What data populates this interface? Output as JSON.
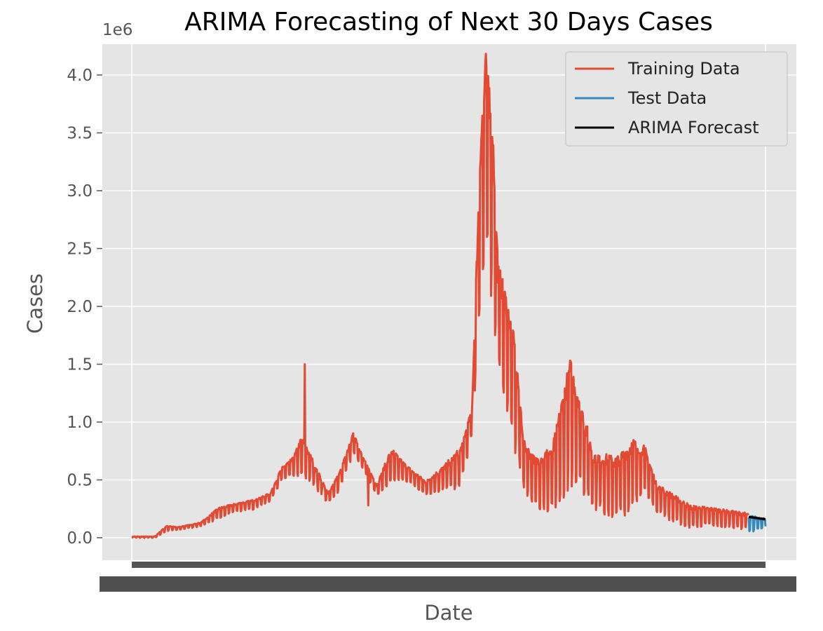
{
  "chart_data": {
    "type": "line",
    "title": "ARIMA Forecasting of Next 30 Days Cases",
    "xlabel": "Date",
    "ylabel": "Cases",
    "y_scale_label": "1e6",
    "ylim": [
      -0.2,
      4.2
    ],
    "y_ticks": [
      0.0,
      0.5,
      1.0,
      1.5,
      2.0,
      2.5,
      3.0,
      3.5,
      4.0
    ],
    "y_tick_labels": [
      "0.0",
      "0.5",
      "1.0",
      "1.5",
      "2.0",
      "2.5",
      "3.0",
      "3.5",
      "4.0"
    ],
    "x_tick_labels_note": "",
    "grid": true,
    "legend_position": "top-right",
    "x_points": 1100,
    "series": [
      {
        "name": "Training Data",
        "color": "#E24A33",
        "x_range": [
          0,
          1070
        ],
        "envelope_knots": [
          [
            0,
            0.0,
            0.01
          ],
          [
            40,
            0.0,
            0.01
          ],
          [
            60,
            0.06,
            0.1
          ],
          [
            80,
            0.07,
            0.09
          ],
          [
            120,
            0.1,
            0.13
          ],
          [
            150,
            0.17,
            0.25
          ],
          [
            180,
            0.23,
            0.29
          ],
          [
            210,
            0.25,
            0.32
          ],
          [
            240,
            0.32,
            0.38
          ],
          [
            260,
            0.5,
            0.6
          ],
          [
            280,
            0.55,
            0.68
          ],
          [
            295,
            0.55,
            0.85
          ],
          [
            310,
            0.5,
            0.7
          ],
          [
            340,
            0.3,
            0.38
          ],
          [
            360,
            0.42,
            0.55
          ],
          [
            385,
            0.75,
            0.9
          ],
          [
            400,
            0.6,
            0.7
          ],
          [
            425,
            0.38,
            0.45
          ],
          [
            450,
            0.48,
            0.75
          ],
          [
            475,
            0.5,
            0.62
          ],
          [
            510,
            0.38,
            0.48
          ],
          [
            540,
            0.42,
            0.6
          ],
          [
            570,
            0.45,
            0.75
          ],
          [
            590,
            0.9,
            1.1
          ],
          [
            605,
            2.2,
            3.4
          ],
          [
            615,
            2.5,
            4.08
          ],
          [
            625,
            2.2,
            3.6
          ],
          [
            635,
            1.5,
            2.3
          ],
          [
            650,
            1.2,
            2.0
          ],
          [
            665,
            0.8,
            1.6
          ],
          [
            680,
            0.45,
            0.8
          ],
          [
            700,
            0.3,
            0.65
          ],
          [
            730,
            0.25,
            0.75
          ],
          [
            760,
            0.55,
            1.45
          ],
          [
            775,
            0.5,
            1.2
          ],
          [
            800,
            0.3,
            0.7
          ],
          [
            840,
            0.2,
            0.65
          ],
          [
            870,
            0.3,
            0.8
          ],
          [
            890,
            0.4,
            0.75
          ],
          [
            910,
            0.25,
            0.45
          ],
          [
            940,
            0.15,
            0.35
          ],
          [
            970,
            0.1,
            0.26
          ],
          [
            1000,
            0.12,
            0.25
          ],
          [
            1040,
            0.1,
            0.22
          ],
          [
            1070,
            0.08,
            0.2
          ]
        ],
        "spikes": [
          [
            300,
            1.5
          ],
          [
            330,
            0.42
          ],
          [
            410,
            0.28
          ]
        ]
      },
      {
        "name": "Test Data",
        "color": "#348ABD",
        "x_range": [
          1070,
          1099
        ],
        "envelope_knots": [
          [
            1070,
            0.05,
            0.18
          ],
          [
            1085,
            0.08,
            0.17
          ],
          [
            1099,
            0.1,
            0.16
          ]
        ]
      },
      {
        "name": "ARIMA Forecast",
        "color": "#000000",
        "x_range": [
          1070,
          1099
        ],
        "values_start_end": [
          0.18,
          0.16
        ]
      }
    ]
  }
}
